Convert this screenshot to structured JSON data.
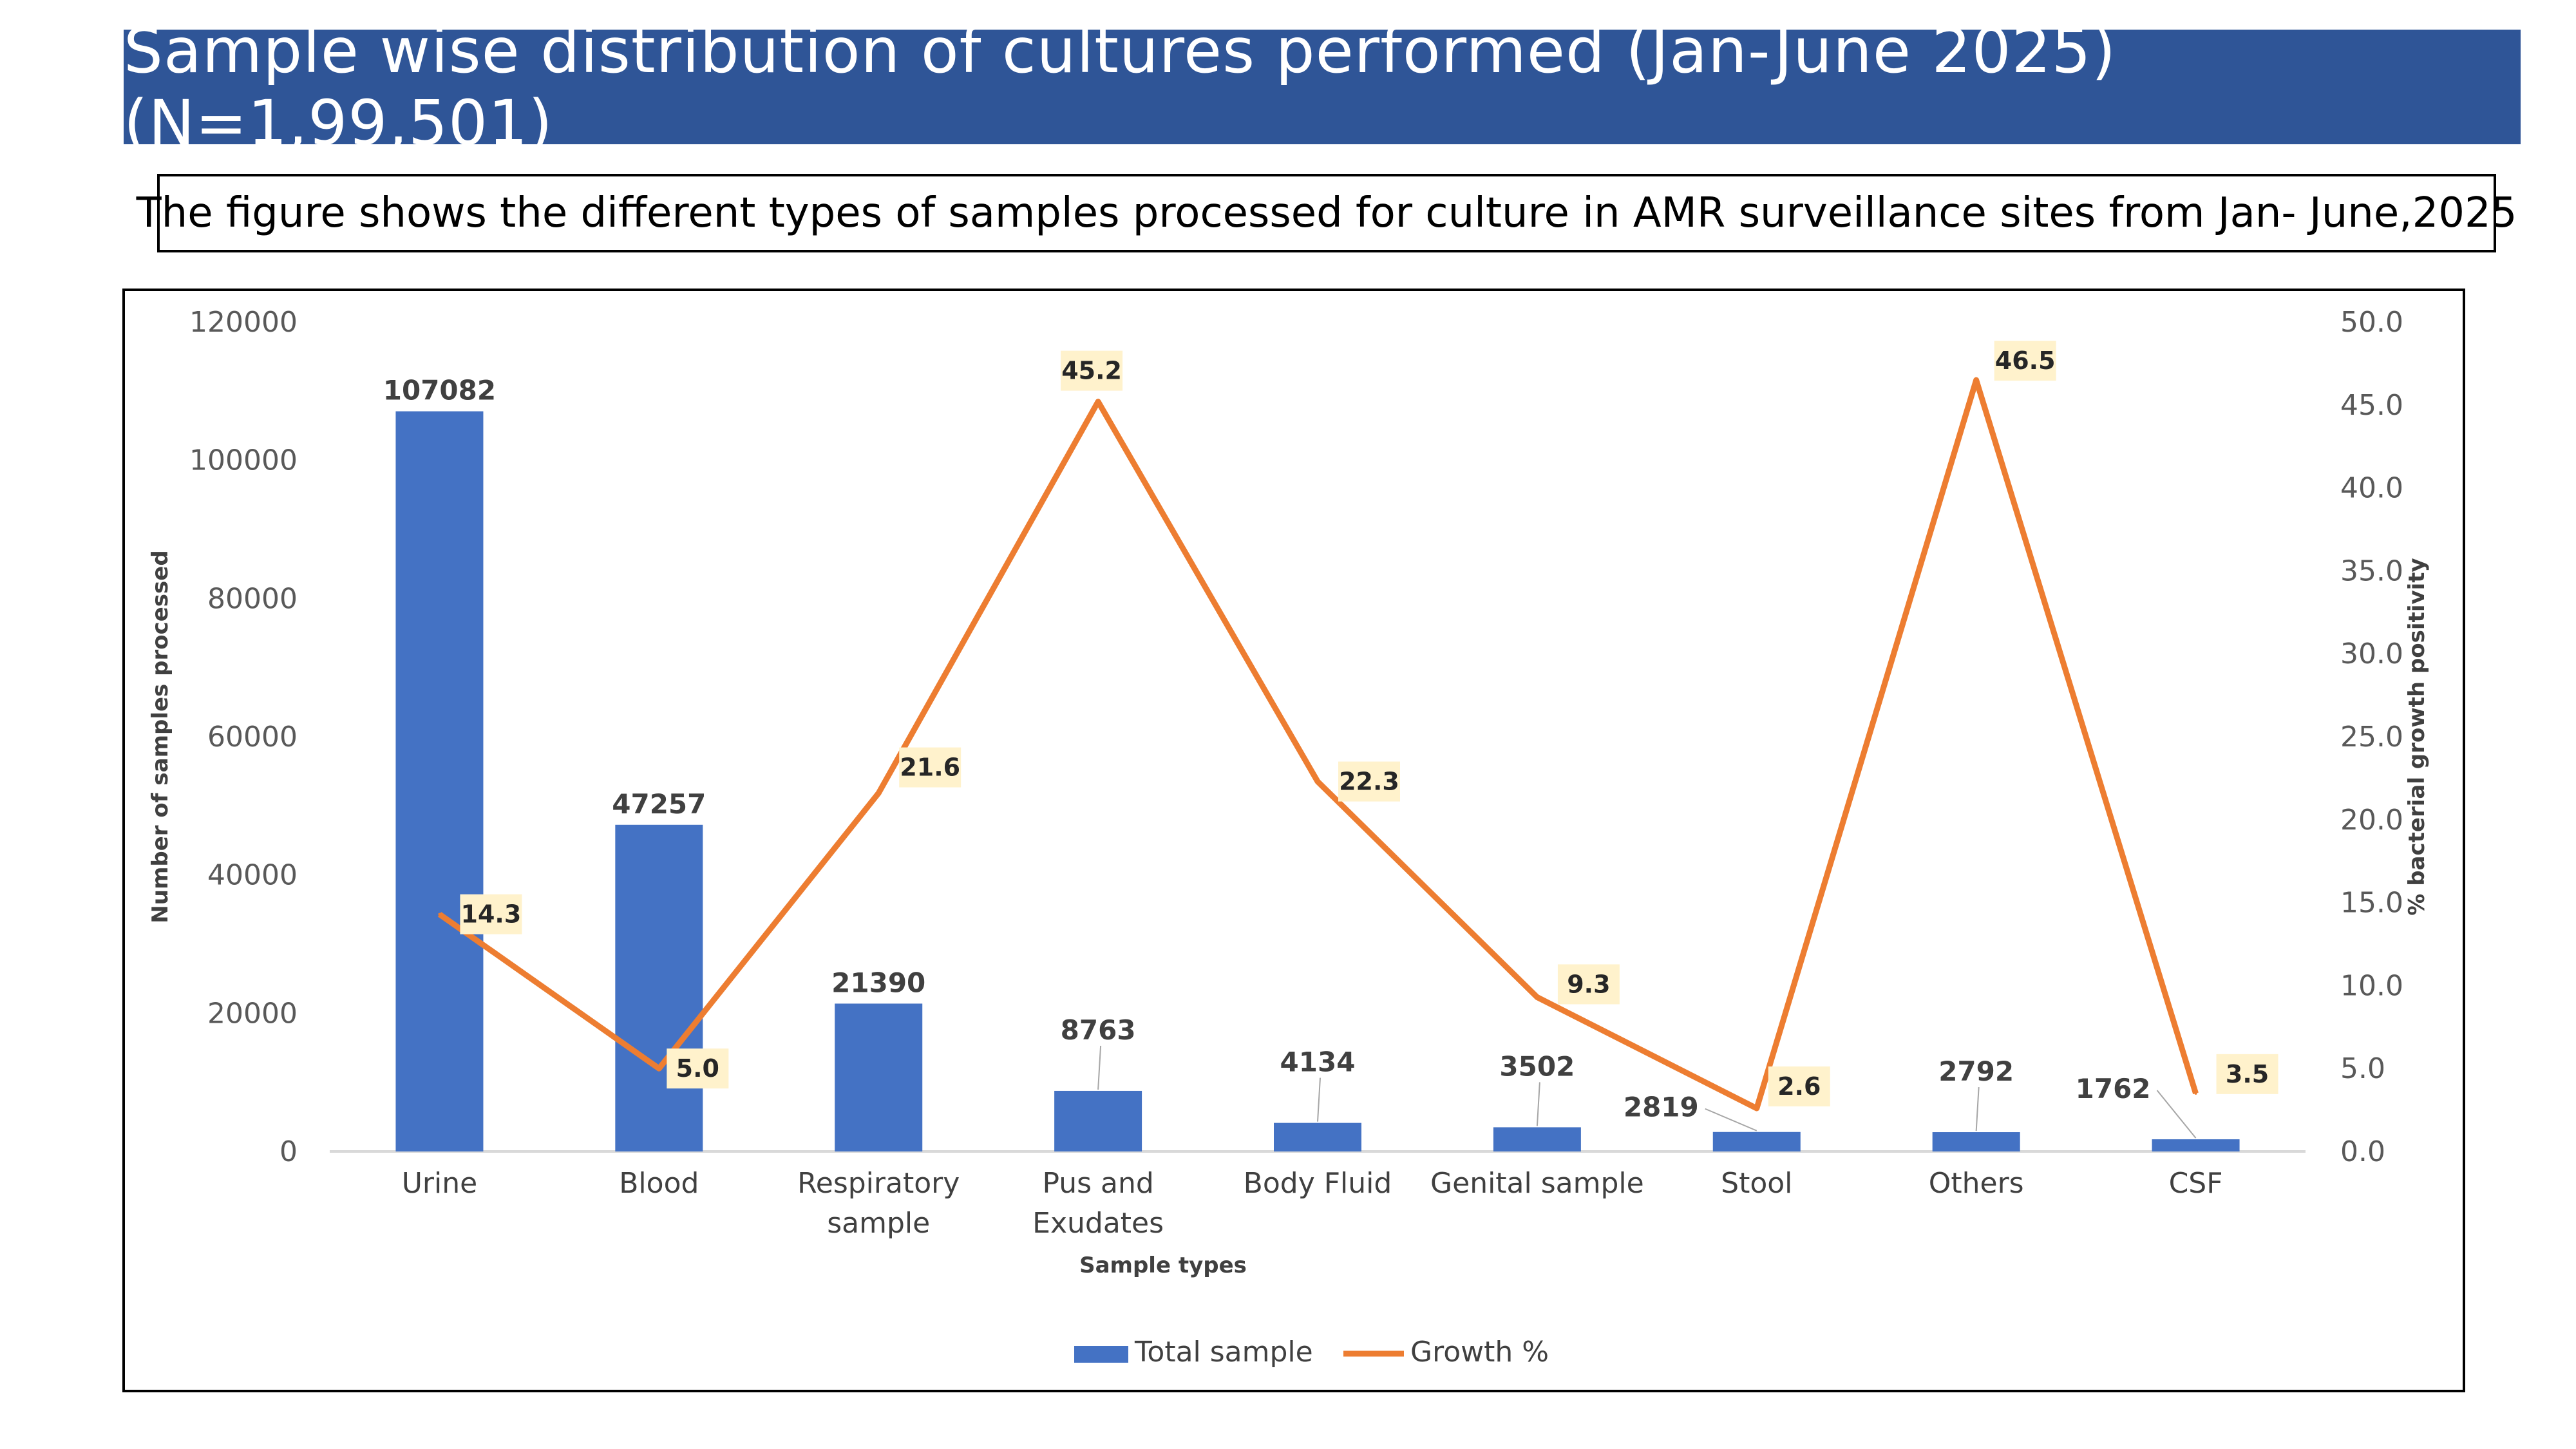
{
  "header": {
    "title": "Sample wise distribution of cultures performed (Jan-June 2025) (N=1,99,501)",
    "caption": "The figure shows the different types of samples processed for culture in AMR surveillance sites from Jan- June,2025"
  },
  "colors": {
    "title_bg": "#2f5597",
    "bar": "#4472c4",
    "line": "#ed7d31",
    "label_bg": "#fff2cc"
  },
  "chart_data": {
    "type": "bar",
    "categories": [
      "Urine",
      "Blood",
      "Respiratory sample",
      "Pus and Exudates",
      "Body Fluid",
      "Genital sample",
      "Stool",
      "Others",
      "CSF"
    ],
    "category_lines": [
      [
        "Urine"
      ],
      [
        "Blood"
      ],
      [
        "Respiratory",
        "sample"
      ],
      [
        "Pus and",
        "Exudates"
      ],
      [
        "Body Fluid"
      ],
      [
        "Genital sample"
      ],
      [
        "Stool"
      ],
      [
        "Others"
      ],
      [
        "CSF"
      ]
    ],
    "series": [
      {
        "name": "Total sample",
        "type": "bar",
        "axis": "left",
        "values": [
          107082,
          47257,
          21390,
          8763,
          4134,
          3502,
          2819,
          2792,
          1762
        ]
      },
      {
        "name": "Growth %",
        "type": "line",
        "axis": "right",
        "values": [
          14.3,
          5.0,
          21.6,
          45.2,
          22.3,
          9.3,
          2.6,
          46.5,
          3.5
        ]
      }
    ],
    "bar_labels": [
      "107082",
      "47257",
      "21390",
      "8763",
      "4134",
      "3502",
      "2819",
      "2792",
      "1762"
    ],
    "line_labels": [
      "14.3",
      "5.0",
      "21.6",
      "45.2",
      "22.3",
      "9.3",
      "2.6",
      "46.5",
      "3.5"
    ],
    "xlabel": "Sample types",
    "ylabel": "Number of samples processed",
    "y2label": "% bacterial growth positivity",
    "ylim": [
      0,
      120000
    ],
    "y2lim": [
      0,
      50
    ],
    "yticks": [
      "0",
      "20000",
      "40000",
      "60000",
      "80000",
      "100000",
      "120000"
    ],
    "y2ticks": [
      "0.0",
      "5.0",
      "10.0",
      "15.0",
      "20.0",
      "25.0",
      "30.0",
      "35.0",
      "40.0",
      "45.0",
      "50.0"
    ],
    "legend": [
      "Total sample",
      "Growth %"
    ],
    "legend_position": "bottom"
  }
}
